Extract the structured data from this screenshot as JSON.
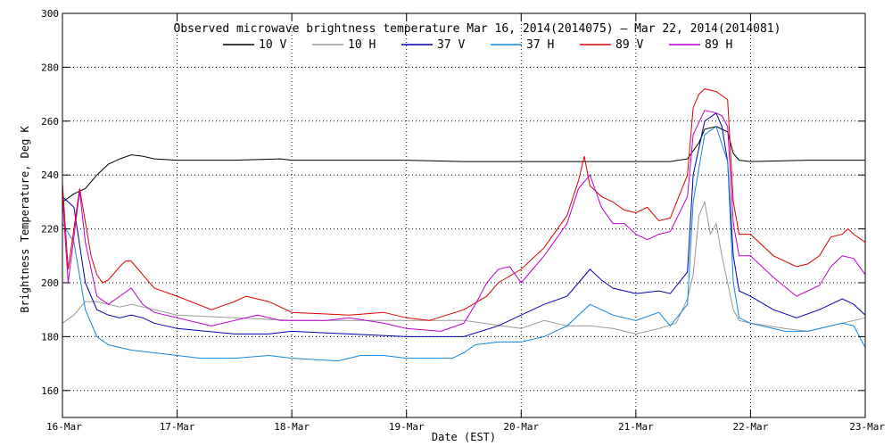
{
  "chart_data": {
    "type": "line",
    "title": "Observed microwave brightness temperature Mar 16, 2014(2014075) – Mar 22, 2014(2014081)",
    "xlabel": "Date (EST)",
    "ylabel": "Brightness Temperature, Deg K",
    "x_unit": "days from 16-Mar",
    "x_ticks": [
      "16-Mar",
      "17-Mar",
      "18-Mar",
      "19-Mar",
      "20-Mar",
      "21-Mar",
      "22-Mar",
      "23-Mar"
    ],
    "xlim": [
      "16-Mar",
      "23-Mar"
    ],
    "ylim": [
      150,
      300
    ],
    "y_ticks": [
      "160",
      "180",
      "200",
      "220",
      "240",
      "260",
      "280",
      "300"
    ],
    "grid": true,
    "legend_position": "top",
    "series": [
      {
        "name": "10 V",
        "color": "#000000",
        "points": [
          [
            0,
            230
          ],
          [
            0.1,
            233
          ],
          [
            0.2,
            235
          ],
          [
            0.3,
            240
          ],
          [
            0.4,
            244
          ],
          [
            0.5,
            246
          ],
          [
            0.6,
            247.5
          ],
          [
            0.7,
            247
          ],
          [
            0.8,
            246
          ],
          [
            1.0,
            245.5
          ],
          [
            1.5,
            245.5
          ],
          [
            1.9,
            246
          ],
          [
            2.0,
            245.5
          ],
          [
            2.5,
            245.5
          ],
          [
            3.0,
            245.5
          ],
          [
            3.5,
            245
          ],
          [
            4.0,
            245
          ],
          [
            4.5,
            245
          ],
          [
            5.0,
            245
          ],
          [
            5.3,
            245
          ],
          [
            5.45,
            246
          ],
          [
            5.55,
            252
          ],
          [
            5.6,
            257
          ],
          [
            5.7,
            258
          ],
          [
            5.8,
            256
          ],
          [
            5.85,
            248
          ],
          [
            5.9,
            245.5
          ],
          [
            6.0,
            245
          ],
          [
            6.5,
            245.5
          ],
          [
            7.0,
            245.5
          ]
        ]
      },
      {
        "name": "10 H",
        "color": "#999999",
        "points": [
          [
            0,
            185
          ],
          [
            0.1,
            188
          ],
          [
            0.2,
            193
          ],
          [
            0.3,
            193
          ],
          [
            0.4,
            192
          ],
          [
            0.5,
            191
          ],
          [
            0.6,
            192
          ],
          [
            0.7,
            191
          ],
          [
            0.8,
            190
          ],
          [
            1.0,
            188
          ],
          [
            1.5,
            187
          ],
          [
            2.0,
            186
          ],
          [
            2.5,
            186
          ],
          [
            3.0,
            186
          ],
          [
            3.5,
            186
          ],
          [
            4.0,
            183
          ],
          [
            4.2,
            186
          ],
          [
            4.4,
            184
          ],
          [
            4.6,
            184
          ],
          [
            4.8,
            183
          ],
          [
            5.0,
            181
          ],
          [
            5.2,
            183
          ],
          [
            5.35,
            185
          ],
          [
            5.45,
            194
          ],
          [
            5.5,
            203
          ],
          [
            5.55,
            225
          ],
          [
            5.6,
            230
          ],
          [
            5.65,
            218
          ],
          [
            5.7,
            222
          ],
          [
            5.75,
            210
          ],
          [
            5.8,
            200
          ],
          [
            5.85,
            190
          ],
          [
            5.9,
            186
          ],
          [
            6.0,
            185
          ],
          [
            6.3,
            183
          ],
          [
            6.5,
            182
          ],
          [
            6.8,
            185
          ],
          [
            7.0,
            187
          ]
        ]
      },
      {
        "name": "37 V",
        "color": "#0000aa",
        "points": [
          [
            0,
            232
          ],
          [
            0.1,
            228
          ],
          [
            0.2,
            200
          ],
          [
            0.3,
            190
          ],
          [
            0.4,
            188
          ],
          [
            0.5,
            187
          ],
          [
            0.6,
            188
          ],
          [
            0.7,
            187
          ],
          [
            0.8,
            185
          ],
          [
            1.0,
            183
          ],
          [
            1.5,
            181
          ],
          [
            1.8,
            181
          ],
          [
            2.0,
            182
          ],
          [
            2.5,
            181
          ],
          [
            3.0,
            180
          ],
          [
            3.5,
            180
          ],
          [
            3.8,
            184
          ],
          [
            4.0,
            188
          ],
          [
            4.2,
            192
          ],
          [
            4.4,
            195
          ],
          [
            4.5,
            200
          ],
          [
            4.6,
            205
          ],
          [
            4.7,
            201
          ],
          [
            4.8,
            198
          ],
          [
            5.0,
            196
          ],
          [
            5.2,
            197
          ],
          [
            5.3,
            196
          ],
          [
            5.45,
            204
          ],
          [
            5.5,
            240
          ],
          [
            5.6,
            260
          ],
          [
            5.7,
            263
          ],
          [
            5.75,
            258
          ],
          [
            5.8,
            245
          ],
          [
            5.85,
            210
          ],
          [
            5.9,
            197
          ],
          [
            6.0,
            195
          ],
          [
            6.2,
            190
          ],
          [
            6.4,
            187
          ],
          [
            6.6,
            190
          ],
          [
            6.8,
            194
          ],
          [
            6.9,
            192
          ],
          [
            7.0,
            188
          ]
        ]
      },
      {
        "name": "37 H",
        "color": "#1188dd",
        "points": [
          [
            0,
            222
          ],
          [
            0.1,
            215
          ],
          [
            0.2,
            190
          ],
          [
            0.3,
            180
          ],
          [
            0.4,
            177
          ],
          [
            0.5,
            176
          ],
          [
            0.6,
            175
          ],
          [
            0.8,
            174
          ],
          [
            1.0,
            173
          ],
          [
            1.2,
            172
          ],
          [
            1.5,
            172
          ],
          [
            1.8,
            173
          ],
          [
            2.0,
            172
          ],
          [
            2.4,
            171
          ],
          [
            2.5,
            172
          ],
          [
            2.6,
            173
          ],
          [
            2.8,
            173
          ],
          [
            3.0,
            172
          ],
          [
            3.4,
            172
          ],
          [
            3.5,
            174
          ],
          [
            3.6,
            177
          ],
          [
            3.8,
            178
          ],
          [
            4.0,
            178
          ],
          [
            4.2,
            180
          ],
          [
            4.4,
            184
          ],
          [
            4.6,
            192
          ],
          [
            4.7,
            190
          ],
          [
            4.8,
            188
          ],
          [
            5.0,
            186
          ],
          [
            5.2,
            189
          ],
          [
            5.3,
            184
          ],
          [
            5.45,
            192
          ],
          [
            5.5,
            230
          ],
          [
            5.6,
            255
          ],
          [
            5.7,
            258
          ],
          [
            5.8,
            245
          ],
          [
            5.85,
            200
          ],
          [
            5.9,
            187
          ],
          [
            6.0,
            185
          ],
          [
            6.3,
            182
          ],
          [
            6.5,
            182
          ],
          [
            6.8,
            185
          ],
          [
            6.9,
            184
          ],
          [
            7.0,
            176
          ]
        ]
      },
      {
        "name": "89 V",
        "color": "#dd0000",
        "points": [
          [
            0,
            237
          ],
          [
            0.05,
            205
          ],
          [
            0.15,
            235
          ],
          [
            0.25,
            210
          ],
          [
            0.3,
            203
          ],
          [
            0.35,
            200
          ],
          [
            0.4,
            201
          ],
          [
            0.5,
            206
          ],
          [
            0.55,
            208
          ],
          [
            0.6,
            208
          ],
          [
            0.7,
            203
          ],
          [
            0.8,
            198
          ],
          [
            1.0,
            195
          ],
          [
            1.3,
            190
          ],
          [
            1.5,
            193
          ],
          [
            1.6,
            195
          ],
          [
            1.8,
            193
          ],
          [
            2.0,
            189
          ],
          [
            2.5,
            188
          ],
          [
            2.8,
            189
          ],
          [
            3.0,
            187
          ],
          [
            3.2,
            186
          ],
          [
            3.5,
            190
          ],
          [
            3.7,
            195
          ],
          [
            3.8,
            200
          ],
          [
            4.0,
            205
          ],
          [
            4.2,
            213
          ],
          [
            4.4,
            225
          ],
          [
            4.5,
            238
          ],
          [
            4.55,
            247
          ],
          [
            4.6,
            236
          ],
          [
            4.7,
            232
          ],
          [
            4.8,
            230
          ],
          [
            4.9,
            227
          ],
          [
            5.0,
            226
          ],
          [
            5.1,
            228
          ],
          [
            5.2,
            223
          ],
          [
            5.3,
            224
          ],
          [
            5.45,
            240
          ],
          [
            5.5,
            265
          ],
          [
            5.55,
            270
          ],
          [
            5.6,
            272
          ],
          [
            5.7,
            271
          ],
          [
            5.8,
            268
          ],
          [
            5.85,
            230
          ],
          [
            5.9,
            218
          ],
          [
            6.0,
            218
          ],
          [
            6.2,
            210
          ],
          [
            6.4,
            206
          ],
          [
            6.5,
            207
          ],
          [
            6.6,
            210
          ],
          [
            6.7,
            217
          ],
          [
            6.8,
            218
          ],
          [
            6.85,
            220
          ],
          [
            6.9,
            218
          ],
          [
            7.0,
            215
          ]
        ]
      },
      {
        "name": "89 H",
        "color": "#bb00cc",
        "points": [
          [
            0,
            232
          ],
          [
            0.05,
            200
          ],
          [
            0.15,
            234
          ],
          [
            0.2,
            215
          ],
          [
            0.3,
            195
          ],
          [
            0.4,
            192
          ],
          [
            0.5,
            195
          ],
          [
            0.6,
            198
          ],
          [
            0.7,
            192
          ],
          [
            0.8,
            189
          ],
          [
            1.0,
            187
          ],
          [
            1.3,
            184
          ],
          [
            1.5,
            186
          ],
          [
            1.7,
            188
          ],
          [
            1.9,
            186
          ],
          [
            2.0,
            186
          ],
          [
            2.3,
            186
          ],
          [
            2.5,
            187
          ],
          [
            2.8,
            185
          ],
          [
            3.0,
            183
          ],
          [
            3.3,
            182
          ],
          [
            3.5,
            185
          ],
          [
            3.6,
            192
          ],
          [
            3.7,
            200
          ],
          [
            3.8,
            205
          ],
          [
            3.9,
            206
          ],
          [
            4.0,
            200
          ],
          [
            4.2,
            210
          ],
          [
            4.4,
            222
          ],
          [
            4.5,
            235
          ],
          [
            4.6,
            240
          ],
          [
            4.7,
            228
          ],
          [
            4.8,
            222
          ],
          [
            4.9,
            222
          ],
          [
            5.0,
            218
          ],
          [
            5.1,
            216
          ],
          [
            5.2,
            218
          ],
          [
            5.3,
            219
          ],
          [
            5.45,
            232
          ],
          [
            5.5,
            255
          ],
          [
            5.6,
            264
          ],
          [
            5.7,
            263
          ],
          [
            5.75,
            262
          ],
          [
            5.8,
            258
          ],
          [
            5.85,
            222
          ],
          [
            5.9,
            210
          ],
          [
            6.0,
            210
          ],
          [
            6.2,
            202
          ],
          [
            6.4,
            195
          ],
          [
            6.6,
            199
          ],
          [
            6.7,
            206
          ],
          [
            6.8,
            210
          ],
          [
            6.9,
            209
          ],
          [
            7.0,
            203
          ]
        ]
      }
    ]
  }
}
